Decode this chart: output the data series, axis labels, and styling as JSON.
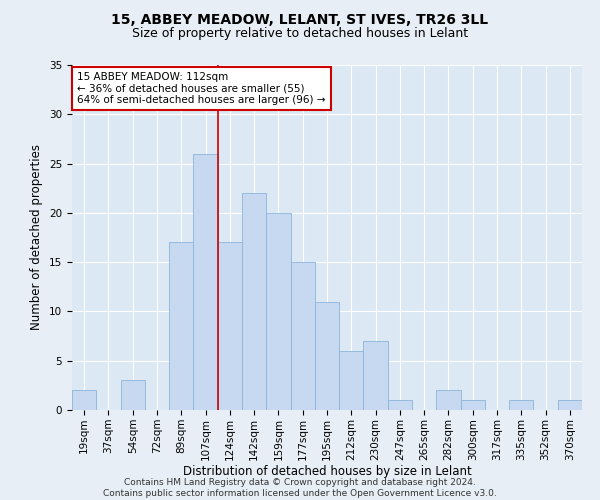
{
  "title": "15, ABBEY MEADOW, LELANT, ST IVES, TR26 3LL",
  "subtitle": "Size of property relative to detached houses in Lelant",
  "xlabel": "Distribution of detached houses by size in Lelant",
  "ylabel": "Number of detached properties",
  "bar_labels": [
    "19sqm",
    "37sqm",
    "54sqm",
    "72sqm",
    "89sqm",
    "107sqm",
    "124sqm",
    "142sqm",
    "159sqm",
    "177sqm",
    "195sqm",
    "212sqm",
    "230sqm",
    "247sqm",
    "265sqm",
    "282sqm",
    "300sqm",
    "317sqm",
    "335sqm",
    "352sqm",
    "370sqm"
  ],
  "bar_values": [
    2,
    0,
    3,
    0,
    17,
    26,
    17,
    22,
    20,
    15,
    11,
    6,
    7,
    1,
    0,
    2,
    1,
    0,
    1,
    0,
    1
  ],
  "bar_color": "#c6d9f0",
  "bar_edgecolor": "#8cb4d8",
  "vline_x": 5.5,
  "vline_color": "#cc0000",
  "annotation_text": "15 ABBEY MEADOW: 112sqm\n← 36% of detached houses are smaller (55)\n64% of semi-detached houses are larger (96) →",
  "annotation_box_facecolor": "#ffffff",
  "annotation_box_edgecolor": "#cc0000",
  "ylim": [
    0,
    35
  ],
  "yticks": [
    0,
    5,
    10,
    15,
    20,
    25,
    30,
    35
  ],
  "fig_facecolor": "#e8eef5",
  "axes_facecolor": "#dce8f4",
  "grid_color": "#ffffff",
  "footer_text": "Contains HM Land Registry data © Crown copyright and database right 2024.\nContains public sector information licensed under the Open Government Licence v3.0.",
  "title_fontsize": 10,
  "subtitle_fontsize": 9,
  "axis_label_fontsize": 8.5,
  "tick_fontsize": 7.5,
  "annotation_fontsize": 7.5,
  "footer_fontsize": 6.5
}
